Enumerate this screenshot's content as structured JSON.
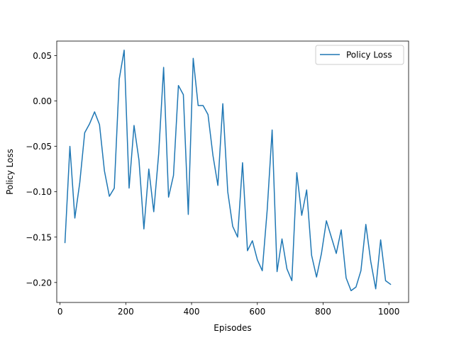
{
  "chart_data": {
    "type": "line",
    "title": "",
    "xlabel": "Episodes",
    "ylabel": "Policy Loss",
    "xlim": [
      -10,
      1060
    ],
    "ylim": [
      -0.222,
      0.066
    ],
    "xticks": [
      0,
      200,
      400,
      600,
      800,
      1000
    ],
    "xtick_labels": [
      "0",
      "200",
      "400",
      "600",
      "800",
      "1000"
    ],
    "yticks": [
      0.05,
      0.0,
      -0.05,
      -0.1,
      -0.15,
      -0.2
    ],
    "ytick_labels": [
      "0.05",
      "0.00",
      "−0.05",
      "−0.10",
      "−0.15",
      "−0.20"
    ],
    "grid": false,
    "legend": {
      "location": "upper right",
      "entries": [
        "Policy Loss"
      ]
    },
    "colors": {
      "series": "#1f77b4",
      "axes": "#000000",
      "legend_border": "#cccccc"
    },
    "series": [
      {
        "name": "Policy Loss",
        "x": [
          15,
          30,
          45,
          60,
          75,
          90,
          105,
          120,
          135,
          150,
          165,
          180,
          195,
          210,
          225,
          240,
          255,
          270,
          285,
          300,
          315,
          330,
          345,
          360,
          375,
          390,
          405,
          420,
          435,
          450,
          465,
          480,
          495,
          510,
          525,
          540,
          555,
          570,
          585,
          600,
          615,
          630,
          645,
          660,
          675,
          690,
          705,
          720,
          735,
          750,
          765,
          780,
          795,
          810,
          825,
          840,
          855,
          870,
          885,
          900,
          915,
          930,
          945,
          960,
          975,
          990,
          1005
        ],
        "y": [
          -0.156,
          -0.05,
          -0.129,
          -0.09,
          -0.035,
          -0.025,
          -0.012,
          -0.026,
          -0.077,
          -0.105,
          -0.096,
          0.024,
          0.056,
          -0.096,
          -0.027,
          -0.065,
          -0.141,
          -0.075,
          -0.122,
          -0.058,
          0.037,
          -0.106,
          -0.082,
          0.017,
          0.007,
          -0.125,
          0.047,
          -0.005,
          -0.005,
          -0.015,
          -0.06,
          -0.093,
          -0.003,
          -0.1,
          -0.138,
          -0.15,
          -0.068,
          -0.165,
          -0.154,
          -0.175,
          -0.187,
          -0.12,
          -0.032,
          -0.188,
          -0.152,
          -0.185,
          -0.198,
          -0.079,
          -0.126,
          -0.098,
          -0.17,
          -0.194,
          -0.168,
          -0.132,
          -0.15,
          -0.168,
          -0.142,
          -0.195,
          -0.209,
          -0.205,
          -0.187,
          -0.136,
          -0.177,
          -0.207,
          -0.153,
          -0.198,
          -0.202
        ]
      }
    ]
  }
}
